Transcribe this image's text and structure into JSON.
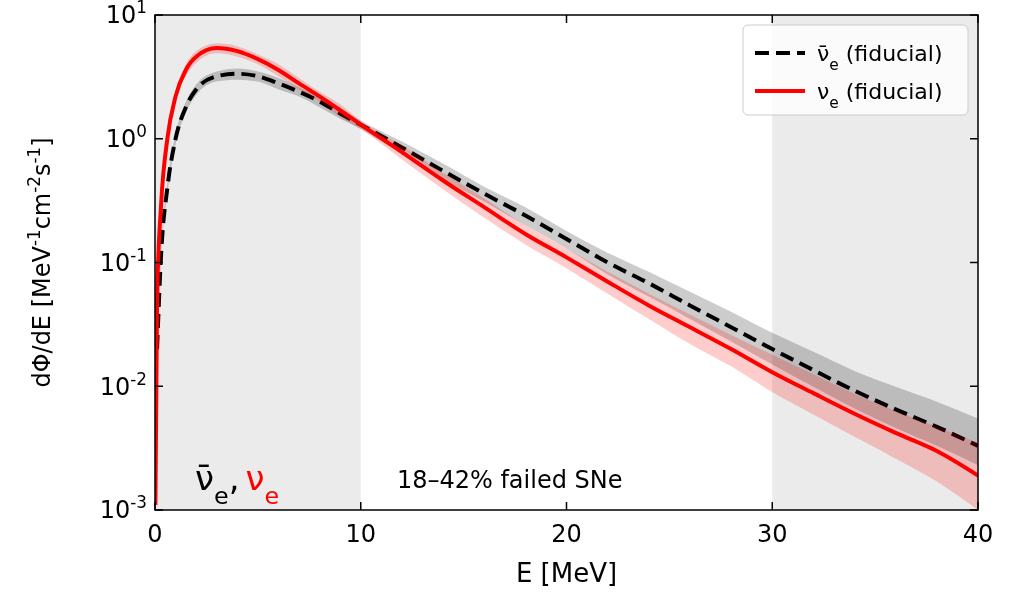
{
  "chart_data": {
    "type": "line",
    "xlabel": "E [MeV]",
    "ylabel": "dΦ/dE [MeV$^{-1}$cm$^{-2}$s$^{-1}$]",
    "log": "y",
    "xlim": [
      0,
      40
    ],
    "xticks": [
      0,
      10,
      20,
      30,
      40
    ],
    "ylim": [
      0.001,
      10
    ],
    "yticks": [
      {
        "value": 0.001,
        "label": "10$^{-3}$"
      },
      {
        "value": 0.01,
        "label": "10$^{-2}$"
      },
      {
        "value": 0.1,
        "label": "10$^{-1}$"
      },
      {
        "value": 1,
        "label": "10$^{0}$"
      },
      {
        "value": 10,
        "label": "10$^{1}$"
      }
    ],
    "legend": "top right",
    "grid": false,
    "bands": [
      {
        "axis": "x",
        "from": 0,
        "to": 10,
        "color": "#ebebeb"
      },
      {
        "axis": "x",
        "from": 30,
        "to": 40,
        "color": "#ebebeb"
      }
    ],
    "annotations": [
      "ν̄$_{e}$,",
      "ν$_{e}$",
      "18–42% failed SNe"
    ],
    "series": [
      {
        "name": "ν̄$_{e}$ (fiducial)",
        "color": "#000000",
        "line_style": "dashed",
        "x": [
          0.1,
          0.3,
          0.6,
          1,
          1.5,
          2,
          3,
          4,
          5,
          6,
          7,
          8,
          9,
          10,
          12,
          14,
          16,
          18,
          20,
          22,
          24,
          26,
          28,
          30,
          32,
          34,
          36,
          38,
          40
        ],
        "values": [
          0.02,
          0.12,
          0.4,
          1.0,
          1.8,
          2.5,
          3.2,
          3.35,
          3.2,
          2.8,
          2.4,
          2.0,
          1.6,
          1.3,
          0.85,
          0.55,
          0.36,
          0.24,
          0.155,
          0.1,
          0.068,
          0.045,
          0.03,
          0.02,
          0.0135,
          0.0092,
          0.0065,
          0.0047,
          0.0033
        ],
        "lower": [
          0.018,
          0.108,
          0.36,
          0.9,
          1.62,
          2.25,
          2.9,
          3.0,
          2.9,
          2.5,
          2.2,
          1.8,
          1.45,
          1.2,
          0.75,
          0.47,
          0.31,
          0.2,
          0.13,
          0.08,
          0.053,
          0.035,
          0.023,
          0.015,
          0.0099,
          0.0066,
          0.0046,
          0.0033,
          0.0023
        ],
        "upper": [
          0.022,
          0.132,
          0.44,
          1.1,
          1.98,
          2.75,
          3.5,
          3.7,
          3.5,
          3.1,
          2.6,
          2.2,
          1.75,
          1.4,
          0.95,
          0.63,
          0.41,
          0.28,
          0.18,
          0.12,
          0.084,
          0.058,
          0.04,
          0.027,
          0.019,
          0.0133,
          0.0099,
          0.0075,
          0.0055
        ]
      },
      {
        "name": "ν$_{e}$ (fiducial)",
        "color": "#ff0000",
        "line_style": "solid",
        "x": [
          0.02,
          0.1,
          0.3,
          0.6,
          1,
          1.5,
          2,
          3,
          4,
          5,
          6,
          7,
          8,
          9,
          10,
          12,
          14,
          16,
          18,
          20,
          22,
          24,
          26,
          28,
          30,
          32,
          34,
          36,
          38,
          40
        ],
        "values": [
          0.0011,
          0.05,
          0.3,
          1.0,
          2.2,
          3.6,
          4.6,
          5.4,
          5.1,
          4.4,
          3.6,
          2.8,
          2.2,
          1.7,
          1.3,
          0.78,
          0.46,
          0.28,
          0.17,
          0.11,
          0.07,
          0.045,
          0.03,
          0.02,
          0.013,
          0.0088,
          0.006,
          0.0042,
          0.003,
          0.0019
        ],
        "lower": [
          0.001,
          0.045,
          0.27,
          0.9,
          2.0,
          3.2,
          4.1,
          4.9,
          4.6,
          4.0,
          3.2,
          2.5,
          2.0,
          1.5,
          1.2,
          0.68,
          0.39,
          0.23,
          0.14,
          0.09,
          0.056,
          0.035,
          0.022,
          0.0145,
          0.009,
          0.0059,
          0.0039,
          0.0026,
          0.0017,
          0.001
        ],
        "upper": [
          0.0012,
          0.055,
          0.33,
          1.1,
          2.4,
          4.0,
          5.1,
          5.9,
          5.6,
          4.8,
          4.0,
          3.1,
          2.4,
          1.9,
          1.4,
          0.88,
          0.53,
          0.33,
          0.2,
          0.13,
          0.084,
          0.056,
          0.038,
          0.026,
          0.018,
          0.0125,
          0.0087,
          0.0063,
          0.0047,
          0.0035
        ]
      }
    ]
  }
}
